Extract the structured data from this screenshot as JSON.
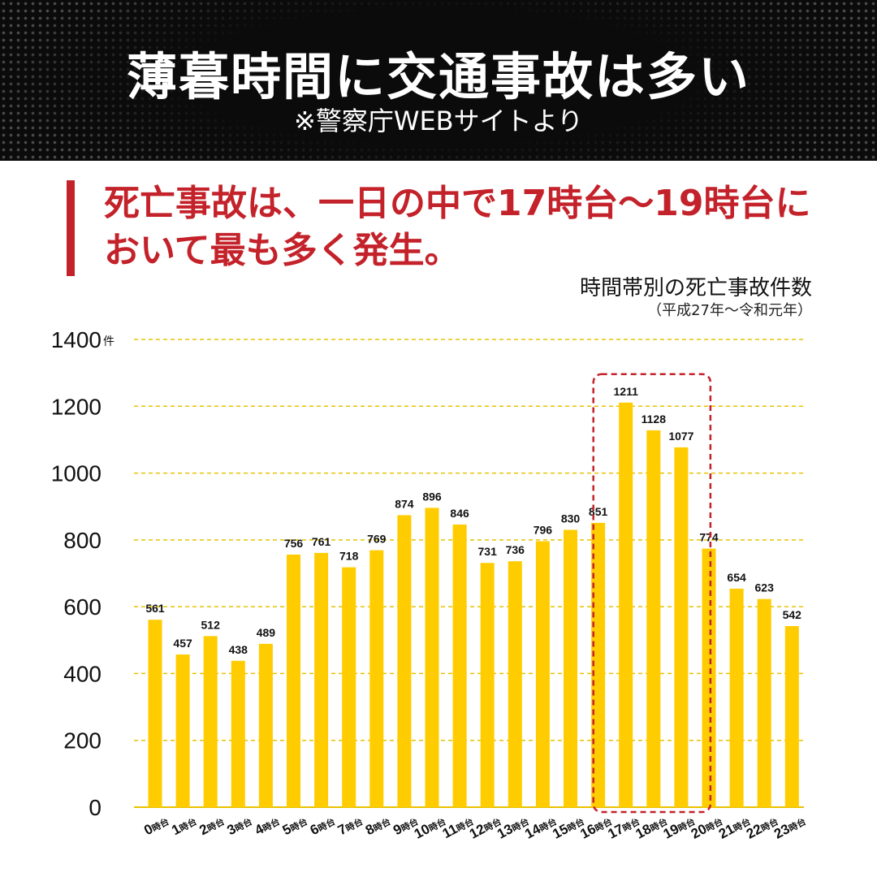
{
  "header": {
    "title": "薄暮時間に交通事故は多い",
    "source": "※警察庁WEBサイトより"
  },
  "headline": {
    "line1": "死亡事故は、一日の中で17時台～19時台に",
    "line2": "おいて最も多く発生。"
  },
  "colors": {
    "bar": "#ffcc00",
    "accent": "#c4222a",
    "grid": "#e8c200",
    "header_bg": "#0b0b0b"
  },
  "chart_data": {
    "type": "bar",
    "title": "時間帯別の死亡事故件数",
    "subtitle": "（平成27年～令和元年）",
    "unit": "件",
    "ylim": [
      0,
      1400
    ],
    "yticks": [
      0,
      200,
      400,
      600,
      800,
      1000,
      1200,
      1400
    ],
    "grid": true,
    "categories": [
      "0時台",
      "1時台",
      "2時台",
      "3時台",
      "4時台",
      "5時台",
      "6時台",
      "7時台",
      "8時台",
      "9時台",
      "10時台",
      "11時台",
      "12時台",
      "13時台",
      "14時台",
      "15時台",
      "16時台",
      "17時台",
      "18時台",
      "19時台",
      "20時台",
      "21時台",
      "22時台",
      "23時台"
    ],
    "values": [
      561,
      457,
      512,
      438,
      489,
      756,
      761,
      718,
      769,
      874,
      896,
      846,
      731,
      736,
      796,
      830,
      851,
      1211,
      1128,
      1077,
      774,
      654,
      623,
      542
    ],
    "highlight": [
      "17時台",
      "18時台",
      "19時台"
    ]
  }
}
